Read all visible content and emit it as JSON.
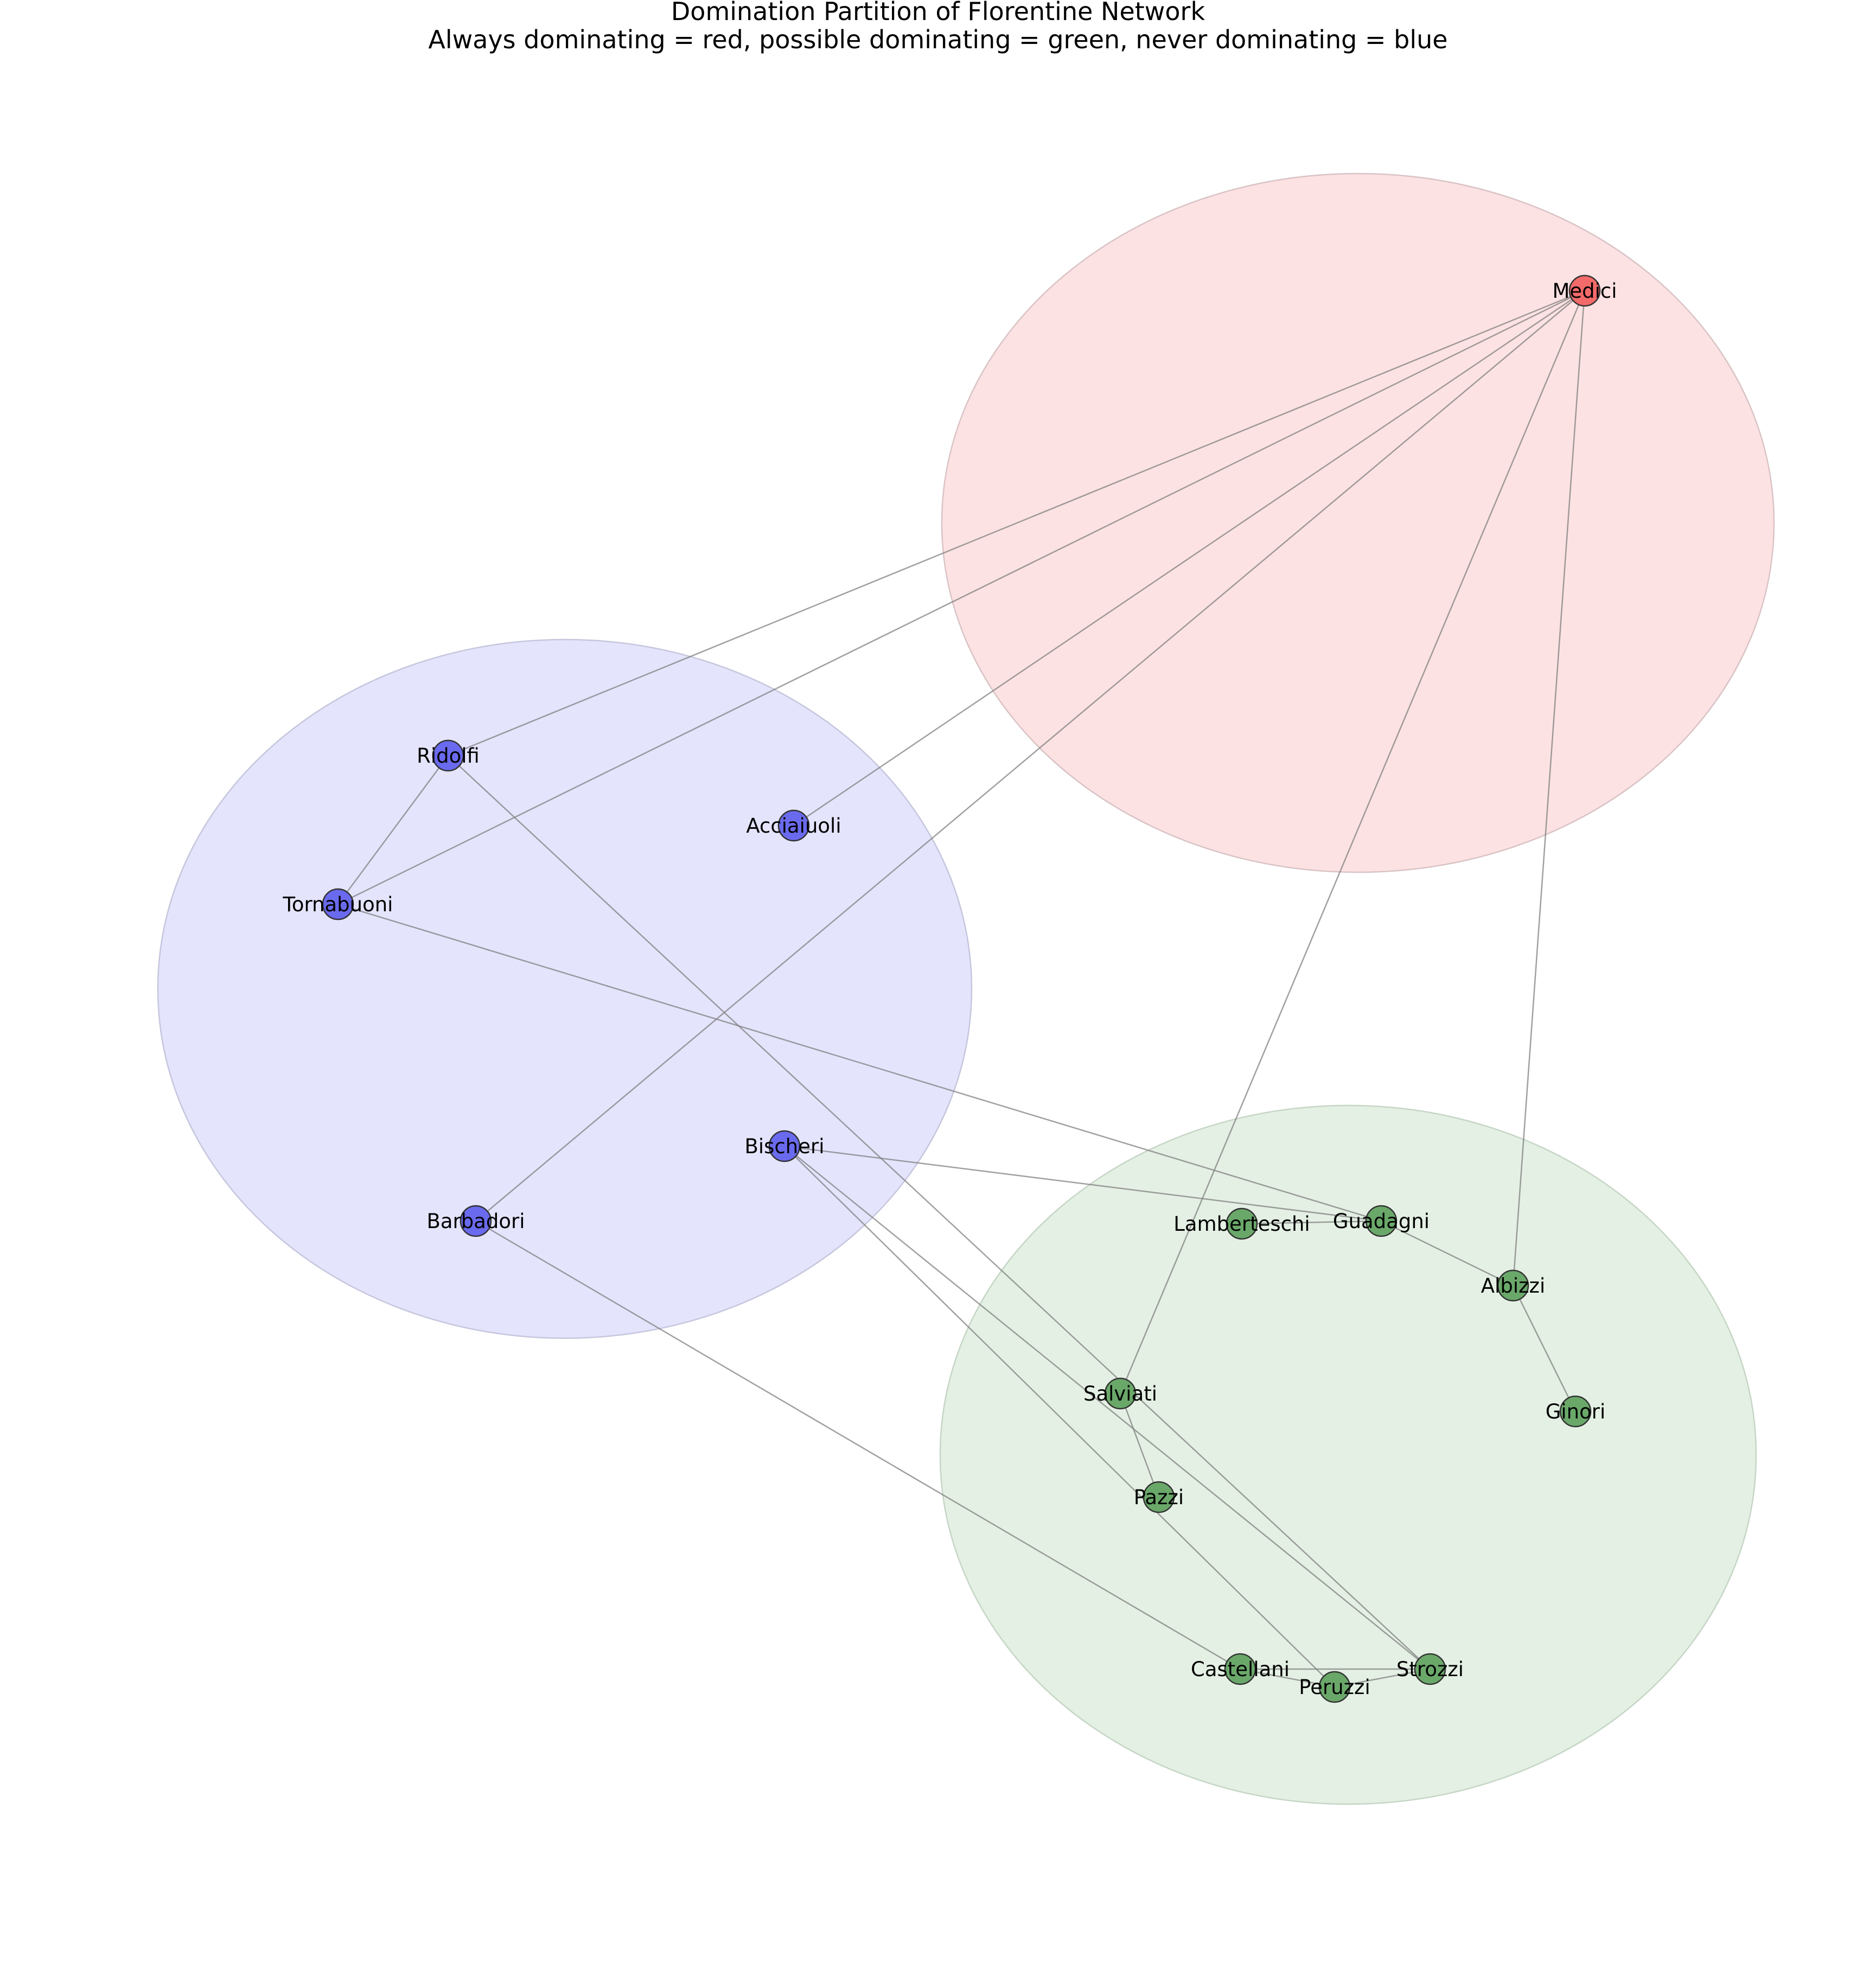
{
  "title": {
    "line1": "Domination Partition of Florentine Network",
    "line2": "Always dominating = red, possible dominating = green, never dominating = blue"
  },
  "colors": {
    "always": "#f36a6a",
    "possible": "#6aa86a",
    "never": "#6a6aee",
    "always_region_fill": "#fde2e3",
    "possible_region_fill": "#e4f0e4",
    "never_region_fill": "#e4e4fd",
    "always_region_stroke": "#d9c3c5",
    "possible_region_stroke": "#c6d6c6",
    "never_region_stroke": "#c6c6dd",
    "edge": "#808080"
  },
  "groups": [
    {
      "id": "always",
      "label": "Always dominating",
      "color_name": "red"
    },
    {
      "id": "possible",
      "label": "possible dominating",
      "color_name": "green"
    },
    {
      "id": "never",
      "label": "never dominating",
      "color_name": "blue"
    }
  ],
  "nodes": [
    {
      "id": "Medici",
      "label": "Medici",
      "group": "always"
    },
    {
      "id": "Ridolfi",
      "label": "Ridolfi",
      "group": "never"
    },
    {
      "id": "Acciaiuoli",
      "label": "Acciaiuoli",
      "group": "never"
    },
    {
      "id": "Tornabuoni",
      "label": "Tornabuoni",
      "group": "never"
    },
    {
      "id": "Bischeri",
      "label": "Bischeri",
      "group": "never"
    },
    {
      "id": "Barbadori",
      "label": "Barbadori",
      "group": "never"
    },
    {
      "id": "Lamberteschi",
      "label": "Lamberteschi",
      "group": "possible"
    },
    {
      "id": "Guadagni",
      "label": "Guadagni",
      "group": "possible"
    },
    {
      "id": "Albizzi",
      "label": "Albizzi",
      "group": "possible"
    },
    {
      "id": "Ginori",
      "label": "Ginori",
      "group": "possible"
    },
    {
      "id": "Salviati",
      "label": "Salviati",
      "group": "possible"
    },
    {
      "id": "Pazzi",
      "label": "Pazzi",
      "group": "possible"
    },
    {
      "id": "Castellani",
      "label": "Castellani",
      "group": "possible"
    },
    {
      "id": "Peruzzi",
      "label": "Peruzzi",
      "group": "possible"
    },
    {
      "id": "Strozzi",
      "label": "Strozzi",
      "group": "possible"
    }
  ],
  "edges": [
    [
      "Medici",
      "Ridolfi"
    ],
    [
      "Medici",
      "Tornabuoni"
    ],
    [
      "Medici",
      "Acciaiuoli"
    ],
    [
      "Medici",
      "Barbadori"
    ],
    [
      "Medici",
      "Salviati"
    ],
    [
      "Medici",
      "Albizzi"
    ],
    [
      "Ridolfi",
      "Tornabuoni"
    ],
    [
      "Ridolfi",
      "Strozzi"
    ],
    [
      "Tornabuoni",
      "Guadagni"
    ],
    [
      "Bischeri",
      "Guadagni"
    ],
    [
      "Bischeri",
      "Peruzzi"
    ],
    [
      "Bischeri",
      "Strozzi"
    ],
    [
      "Barbadori",
      "Castellani"
    ],
    [
      "Lamberteschi",
      "Guadagni"
    ],
    [
      "Guadagni",
      "Albizzi"
    ],
    [
      "Albizzi",
      "Ginori"
    ],
    [
      "Salviati",
      "Pazzi"
    ],
    [
      "Castellani",
      "Peruzzi"
    ],
    [
      "Castellani",
      "Strozzi"
    ],
    [
      "Peruzzi",
      "Strozzi"
    ]
  ]
}
